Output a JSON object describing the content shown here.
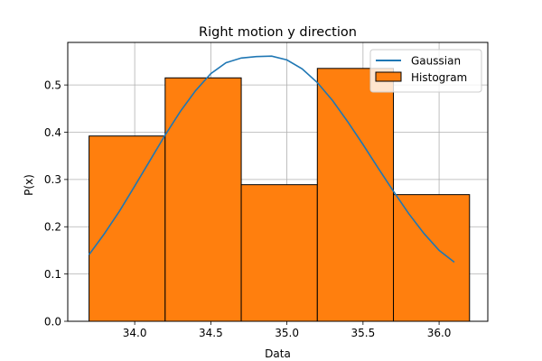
{
  "chart_data": {
    "type": "bar",
    "title": "Right motion y direction",
    "xlabel": "Data",
    "ylabel": "P(x)",
    "xlim": [
      33.56,
      36.32
    ],
    "ylim": [
      0.0,
      0.59
    ],
    "xticks": [
      34.0,
      34.5,
      35.0,
      35.5,
      36.0
    ],
    "xtick_labels": [
      "34.0",
      "34.5",
      "35.0",
      "35.5",
      "36.0"
    ],
    "yticks": [
      0.0,
      0.1,
      0.2,
      0.3,
      0.4,
      0.5
    ],
    "ytick_labels": [
      "0.0",
      "0.1",
      "0.2",
      "0.3",
      "0.4",
      "0.5"
    ],
    "grid": true,
    "legend_position": "top-right",
    "histogram": {
      "name": "Histogram",
      "color": "#ff7f0e",
      "edge_color": "#000000",
      "bins": [
        {
          "x0": 33.7,
          "x1": 34.2,
          "value": 0.392
        },
        {
          "x0": 34.2,
          "x1": 34.7,
          "value": 0.515
        },
        {
          "x0": 34.7,
          "x1": 35.2,
          "value": 0.289
        },
        {
          "x0": 35.2,
          "x1": 35.7,
          "value": 0.535
        },
        {
          "x0": 35.7,
          "x1": 36.2,
          "value": 0.268
        }
      ]
    },
    "gaussian": {
      "name": "Gaussian",
      "color": "#1f77b4",
      "points": [
        [
          33.7,
          0.141
        ],
        [
          33.8,
          0.185
        ],
        [
          33.9,
          0.233
        ],
        [
          34.0,
          0.286
        ],
        [
          34.1,
          0.34
        ],
        [
          34.2,
          0.394
        ],
        [
          34.3,
          0.444
        ],
        [
          34.4,
          0.488
        ],
        [
          34.5,
          0.524
        ],
        [
          34.6,
          0.547
        ],
        [
          34.7,
          0.557
        ],
        [
          34.8,
          0.56
        ],
        [
          34.9,
          0.561
        ],
        [
          35.0,
          0.553
        ],
        [
          35.1,
          0.534
        ],
        [
          35.2,
          0.505
        ],
        [
          35.3,
          0.467
        ],
        [
          35.4,
          0.422
        ],
        [
          35.5,
          0.374
        ],
        [
          35.6,
          0.324
        ],
        [
          35.7,
          0.275
        ],
        [
          35.8,
          0.228
        ],
        [
          35.9,
          0.186
        ],
        [
          36.0,
          0.15
        ],
        [
          36.1,
          0.125
        ]
      ]
    }
  }
}
